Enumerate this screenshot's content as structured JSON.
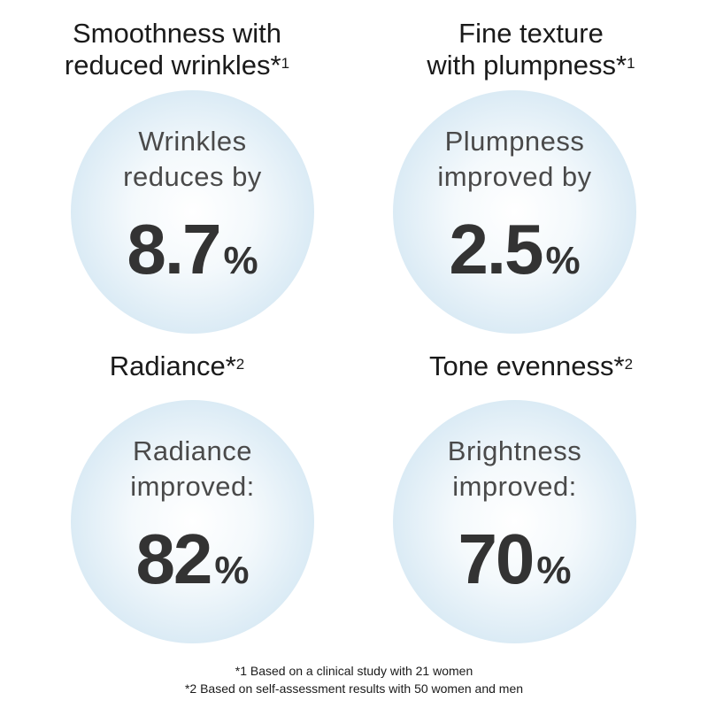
{
  "panels": [
    {
      "heading_line1": "Smoothness with",
      "heading_line2": "reduced wrinkles",
      "heading_mark": "*",
      "heading_sup": "1",
      "label_line1": "Wrinkles",
      "label_line2": "reduces by",
      "value": "8.7",
      "unit": "%"
    },
    {
      "heading_line1": "Fine texture",
      "heading_line2": "with plumpness",
      "heading_mark": "*",
      "heading_sup": "1",
      "label_line1": "Plumpness",
      "label_line2": "improved by",
      "value": "2.5",
      "unit": "%"
    },
    {
      "heading_line1": "Radiance",
      "heading_mark": "*",
      "heading_sup": "2",
      "label_line1": "Radiance",
      "label_line2": "improved:",
      "value": "82",
      "unit": "%"
    },
    {
      "heading_line1": "Tone evenness",
      "heading_mark": "*",
      "heading_sup": "2",
      "label_line1": "Brightness",
      "label_line2": "improved:",
      "value": "70",
      "unit": "%"
    }
  ],
  "footnotes": [
    "*1 Based on a clinical study with 21 women",
    "*2 Based on self-assessment results with 50 women and men"
  ],
  "colors": {
    "circle_center": "#ffffff",
    "circle_edge": "#bcd8ea",
    "value_text": "#333333",
    "label_text": "#4a4a4a"
  }
}
